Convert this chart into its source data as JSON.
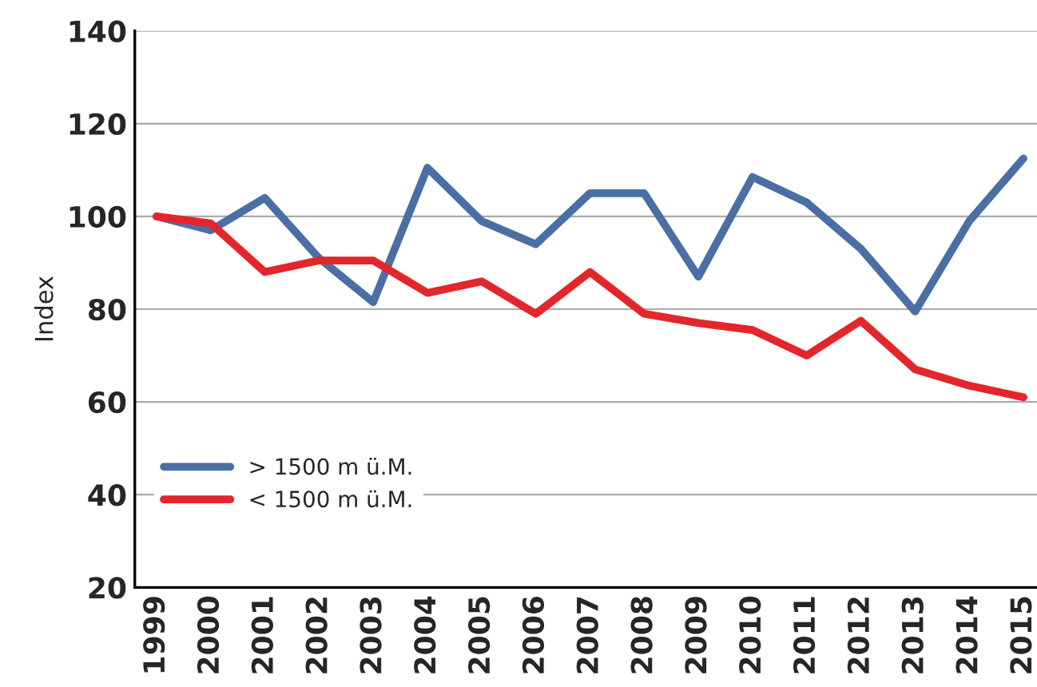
{
  "chart_data": {
    "type": "line",
    "ylabel": "Index",
    "categories": [
      "1999",
      "2000",
      "2001",
      "2002",
      "2003",
      "2004",
      "2005",
      "2006",
      "2007",
      "2008",
      "2009",
      "2010",
      "2011",
      "2012",
      "2013",
      "2014",
      "2015"
    ],
    "series": [
      {
        "name": "> 1500 m ü.M.",
        "color": "#4a6fa5",
        "values": [
          100,
          97,
          104,
          91,
          81.5,
          110.5,
          99,
          94,
          105,
          105,
          87,
          108.5,
          103,
          93,
          79.5,
          99,
          112.5
        ]
      },
      {
        "name": "< 1500 m ü.M.",
        "color": "#e3262b",
        "values": [
          100,
          98.5,
          88,
          90.5,
          90.5,
          83.5,
          86,
          79,
          88,
          79,
          77,
          75.5,
          70,
          77.5,
          67,
          63.5,
          61
        ]
      }
    ],
    "ylim": [
      20,
      140
    ],
    "yticks": [
      20,
      40,
      60,
      80,
      100,
      120,
      140
    ],
    "grid": "y",
    "legend": "bottom left",
    "marker": "none",
    "line_style": "solid"
  }
}
